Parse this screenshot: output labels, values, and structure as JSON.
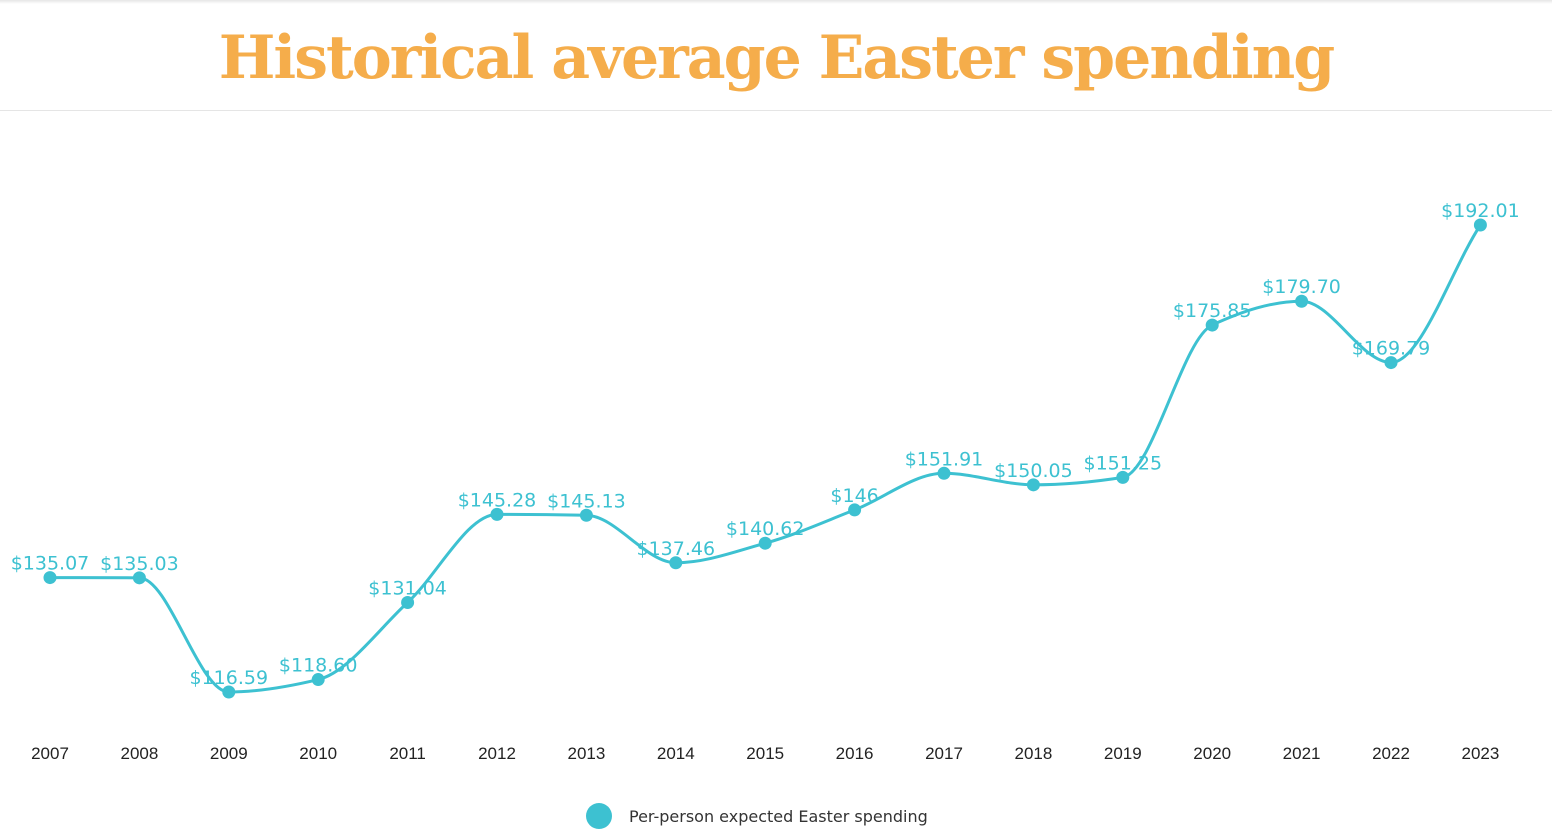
{
  "colors": {
    "title": "#F5AD4B",
    "series": "#3DC1D1"
  },
  "chart_data": {
    "type": "line",
    "title": "Historical average Easter spending",
    "xlabel": "",
    "ylabel": "",
    "ylim": [
      110,
      200
    ],
    "grid": false,
    "legend_position": "bottom",
    "categories": [
      "2007",
      "2008",
      "2009",
      "2010",
      "2011",
      "2012",
      "2013",
      "2014",
      "2015",
      "2016",
      "2017",
      "2018",
      "2019",
      "2020",
      "2021",
      "2022",
      "2023"
    ],
    "series": [
      {
        "name": "Per-person expected Easter spending",
        "values": [
          135.07,
          135.03,
          116.59,
          118.6,
          131.04,
          145.28,
          145.13,
          137.46,
          140.62,
          146,
          151.91,
          150.05,
          151.25,
          175.85,
          179.7,
          169.79,
          192.01
        ],
        "labels": [
          "$135.07",
          "$135.03",
          "$116.59",
          "$118.60",
          "$131.04",
          "$145.28",
          "$145.13",
          "$137.46",
          "$140.62",
          "$146",
          "$151.91",
          "$150.05",
          "$151.25",
          "$175.85",
          "$179.70",
          "$169.79",
          "$192.01"
        ]
      }
    ]
  }
}
